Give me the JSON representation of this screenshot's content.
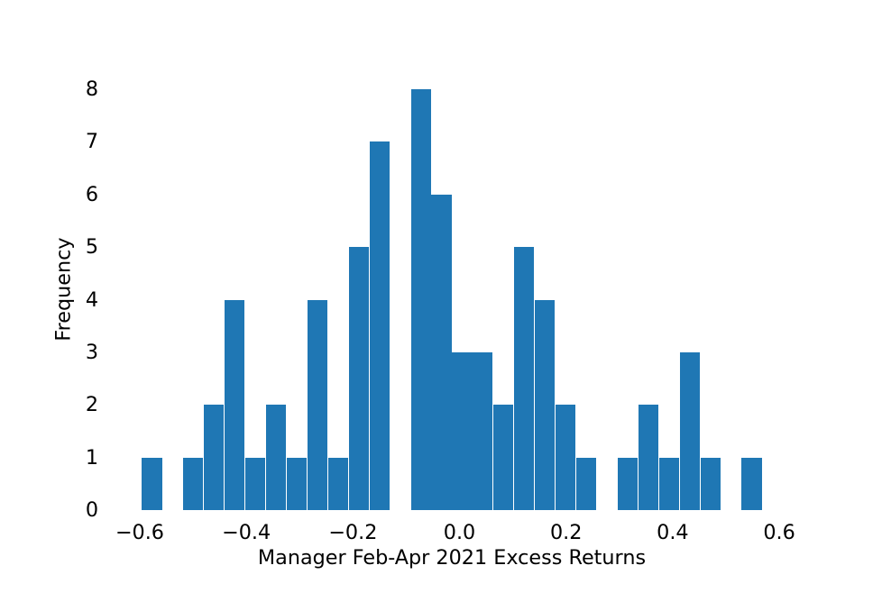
{
  "chart_data": {
    "type": "bar",
    "subtype": "histogram",
    "title": "",
    "xlabel": "Manager Feb-Apr 2021 Excess Returns",
    "ylabel": "Frequency",
    "bar_color": "#1f77b4",
    "background_color": "#ffffff",
    "text_color": "#000000",
    "grid": false,
    "legend": null,
    "bin_start": -0.5965,
    "bin_width": 0.038807,
    "counts": [
      1,
      0,
      1,
      2,
      4,
      1,
      2,
      1,
      4,
      1,
      5,
      7,
      0,
      8,
      6,
      3,
      3,
      2,
      5,
      4,
      2,
      1,
      0,
      1,
      2,
      1,
      3,
      1,
      0,
      1
    ],
    "xlim": [
      -0.6547,
      0.6259
    ],
    "ylim": [
      0,
      8.4
    ],
    "x_ticks": [
      {
        "value": -0.6,
        "label": "−0.6"
      },
      {
        "value": -0.4,
        "label": "−0.4"
      },
      {
        "value": -0.2,
        "label": "−0.2"
      },
      {
        "value": 0.0,
        "label": "0.0"
      },
      {
        "value": 0.2,
        "label": "0.2"
      },
      {
        "value": 0.4,
        "label": "0.4"
      },
      {
        "value": 0.6,
        "label": "0.6"
      }
    ],
    "y_ticks": [
      {
        "value": 0,
        "label": "0"
      },
      {
        "value": 1,
        "label": "1"
      },
      {
        "value": 2,
        "label": "2"
      },
      {
        "value": 3,
        "label": "3"
      },
      {
        "value": 4,
        "label": "4"
      },
      {
        "value": 5,
        "label": "5"
      },
      {
        "value": 6,
        "label": "6"
      },
      {
        "value": 7,
        "label": "7"
      },
      {
        "value": 8,
        "label": "8"
      }
    ]
  }
}
